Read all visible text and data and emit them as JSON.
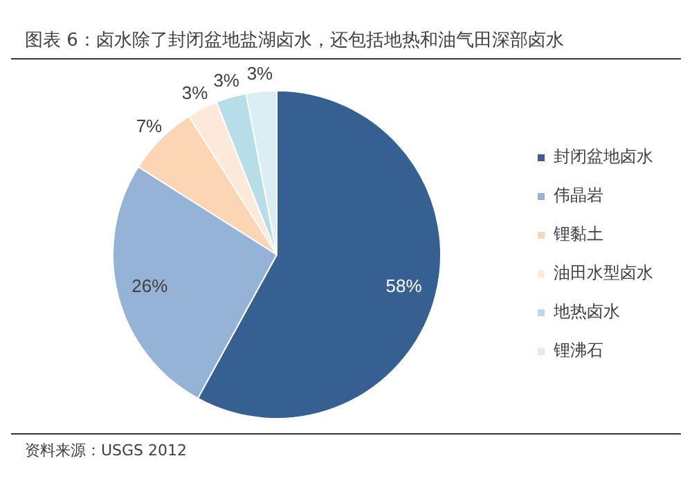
{
  "chart_data": {
    "type": "pie",
    "title": "图表 6：卤水除了封闭盆地盐湖卤水，还包括地热和油气田深部卤水",
    "categories": [
      "封闭盆地卤水",
      "伟晶岩",
      "锂黏土",
      "油田水型卤水",
      "地热卤水",
      "锂沸石"
    ],
    "values": [
      58,
      26,
      7,
      3,
      3,
      3
    ],
    "colors": [
      "#376092",
      "#95b3d7",
      "#fcd5b4",
      "#fde9d9",
      "#b7dee8",
      "#dbeef3"
    ],
    "value_labels": [
      "58%",
      "26%",
      "7%",
      "3%",
      "3%",
      "3%"
    ],
    "legend": "right",
    "annotations": [
      "资料来源：USGS 2012"
    ]
  }
}
